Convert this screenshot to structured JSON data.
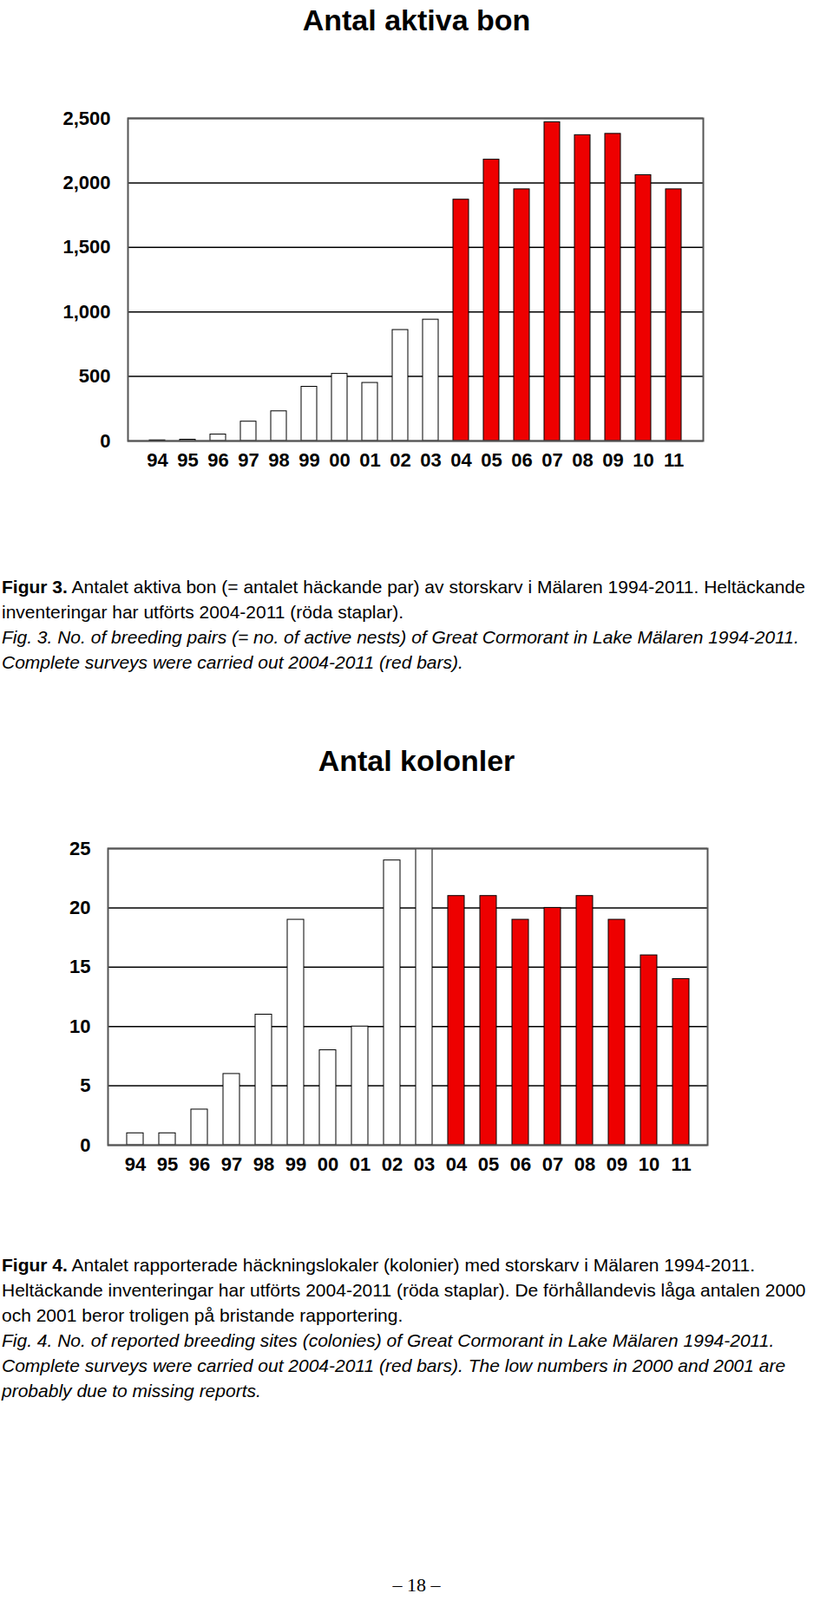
{
  "chart_data": [
    {
      "type": "bar",
      "title": "Antal aktiva bon",
      "categories": [
        "94",
        "95",
        "96",
        "97",
        "98",
        "99",
        "00",
        "01",
        "02",
        "03",
        "04",
        "05",
        "06",
        "07",
        "08",
        "09",
        "10",
        "11"
      ],
      "values": [
        5,
        10,
        50,
        150,
        230,
        420,
        520,
        450,
        860,
        940,
        1870,
        2180,
        1950,
        2470,
        2370,
        2380,
        2060,
        1950
      ],
      "colors": [
        "#ffffff",
        "#ffffff",
        "#ffffff",
        "#ffffff",
        "#ffffff",
        "#ffffff",
        "#ffffff",
        "#ffffff",
        "#ffffff",
        "#ffffff",
        "#ee0000",
        "#ee0000",
        "#ee0000",
        "#ee0000",
        "#ee0000",
        "#ee0000",
        "#ee0000",
        "#ee0000"
      ],
      "ylim": [
        0,
        2500
      ],
      "yticks": [
        0,
        500,
        1000,
        1500,
        2000,
        2500
      ],
      "grid": true,
      "caption_label": "Figur 3.",
      "caption_sv": "Antalet aktiva bon (= antalet häckande par) av storskarv i Mälaren 1994-2011. Heltäckande inventeringar har utförts 2004-2011 (röda staplar).",
      "caption_en": "Fig. 3. No. of breeding pairs (= no. of active nests) of Great Cormorant in Lake Mälaren 1994-2011. Complete surveys were carried out 2004-2011 (red bars)."
    },
    {
      "type": "bar",
      "title": "Antal kolonler",
      "categories": [
        "94",
        "95",
        "96",
        "97",
        "98",
        "99",
        "00",
        "01",
        "02",
        "03",
        "04",
        "05",
        "06",
        "07",
        "08",
        "09",
        "10",
        "11"
      ],
      "values": [
        1,
        1,
        3,
        6,
        11,
        19,
        8,
        10,
        24,
        25,
        21,
        21,
        19,
        20,
        21,
        19,
        16,
        14
      ],
      "colors": [
        "#ffffff",
        "#ffffff",
        "#ffffff",
        "#ffffff",
        "#ffffff",
        "#ffffff",
        "#ffffff",
        "#ffffff",
        "#ffffff",
        "#ffffff",
        "#ee0000",
        "#ee0000",
        "#ee0000",
        "#ee0000",
        "#ee0000",
        "#ee0000",
        "#ee0000",
        "#ee0000"
      ],
      "ylim": [
        0,
        25
      ],
      "yticks": [
        0,
        5,
        10,
        15,
        20,
        25
      ],
      "grid": true,
      "caption_label": "Figur 4.",
      "caption_sv": "Antalet rapporterade häckningslokaler (kolonier) med storskarv i Mälaren 1994-2011. Heltäckande inventeringar har utförts 2004-2011 (röda staplar). De förhållandevis låga antalen 2000 och 2001 beror troligen på bristande rapportering.",
      "caption_en": "Fig. 4. No. of reported breeding sites (colonies) of Great Cormorant in Lake Mälaren 1994-2011. Complete surveys were carried out 2004-2011 (red bars). The low numbers in 2000 and 2001 are probably due to missing reports."
    }
  ],
  "footer": "– 18 –"
}
